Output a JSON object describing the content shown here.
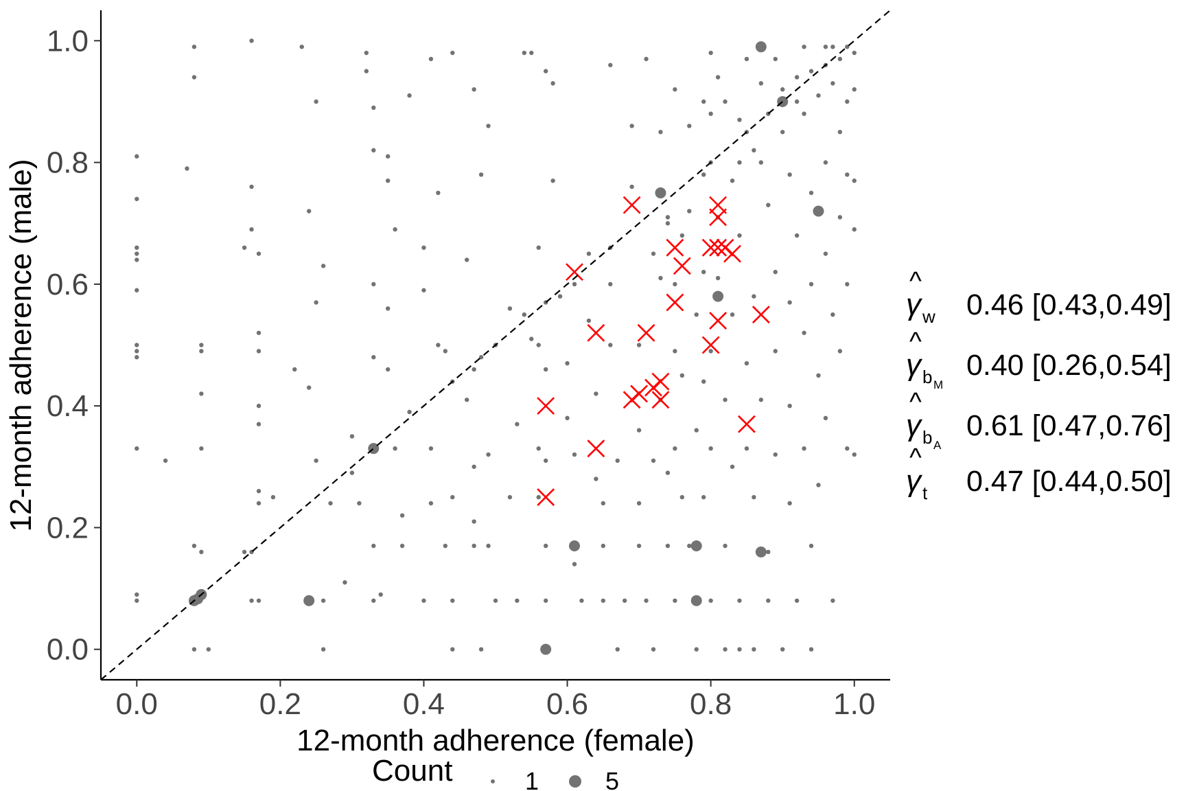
{
  "chart_data": {
    "type": "scatter",
    "xlabel": "12-month adherence (female)",
    "ylabel": "12-month adherence (male)",
    "xlim": [
      -0.05,
      1.05
    ],
    "ylim": [
      -0.05,
      1.05
    ],
    "xticks": [
      "0.0",
      "0.2",
      "0.4",
      "0.6",
      "0.8",
      "1.0"
    ],
    "yticks": [
      "0.0",
      "0.2",
      "0.4",
      "0.6",
      "0.8",
      "1.0"
    ],
    "reference_line": {
      "style": "dashed",
      "slope": 1,
      "intercept": 0
    },
    "legend": {
      "title": "Count",
      "items": [
        {
          "label": "1",
          "count": 1
        },
        {
          "label": "5",
          "count": 5
        }
      ]
    },
    "point_color": "#737373",
    "cross_color": "#ff0000",
    "points_gray": [
      [
        0.0,
        0.81
      ],
      [
        0.0,
        0.74
      ],
      [
        0.0,
        0.66
      ],
      [
        0.0,
        0.65
      ],
      [
        0.0,
        0.64
      ],
      [
        0.0,
        0.59
      ],
      [
        0.0,
        0.5
      ],
      [
        0.0,
        0.49
      ],
      [
        0.0,
        0.48
      ],
      [
        0.0,
        0.33
      ],
      [
        0.0,
        0.09
      ],
      [
        0.0,
        0.08
      ],
      [
        0.04,
        0.31
      ],
      [
        0.07,
        0.79
      ],
      [
        0.08,
        0.99
      ],
      [
        0.08,
        0.94
      ],
      [
        0.08,
        0.17
      ],
      [
        0.09,
        0.5
      ],
      [
        0.09,
        0.49
      ],
      [
        0.09,
        0.42
      ],
      [
        0.09,
        0.33
      ],
      [
        0.08,
        0.0
      ],
      [
        0.1,
        0.0
      ],
      [
        0.09,
        0.16
      ],
      [
        0.15,
        0.66
      ],
      [
        0.16,
        1.0
      ],
      [
        0.16,
        0.76
      ],
      [
        0.16,
        0.69
      ],
      [
        0.17,
        0.65
      ],
      [
        0.17,
        0.52
      ],
      [
        0.17,
        0.49
      ],
      [
        0.17,
        0.4
      ],
      [
        0.17,
        0.37
      ],
      [
        0.16,
        0.16
      ],
      [
        0.17,
        0.26
      ],
      [
        0.17,
        0.24
      ],
      [
        0.15,
        0.16
      ],
      [
        0.16,
        0.08
      ],
      [
        0.17,
        0.08
      ],
      [
        0.19,
        0.25
      ],
      [
        0.23,
        0.99
      ],
      [
        0.22,
        0.46
      ],
      [
        0.24,
        0.43
      ],
      [
        0.25,
        0.9
      ],
      [
        0.25,
        0.57
      ],
      [
        0.24,
        0.72
      ],
      [
        0.26,
        0.63
      ],
      [
        0.25,
        0.31
      ],
      [
        0.24,
        0.08
      ],
      [
        0.26,
        0.08
      ],
      [
        0.26,
        0.0
      ],
      [
        0.27,
        0.24
      ],
      [
        0.29,
        0.11
      ],
      [
        0.3,
        0.35
      ],
      [
        0.3,
        0.29
      ],
      [
        0.31,
        0.24
      ],
      [
        0.32,
        0.98
      ],
      [
        0.32,
        0.95
      ],
      [
        0.33,
        0.89
      ],
      [
        0.33,
        0.82
      ],
      [
        0.33,
        0.6
      ],
      [
        0.33,
        0.48
      ],
      [
        0.33,
        0.17
      ],
      [
        0.33,
        0.08
      ],
      [
        0.34,
        0.09
      ],
      [
        0.35,
        0.81
      ],
      [
        0.35,
        0.77
      ],
      [
        0.36,
        0.69
      ],
      [
        0.35,
        0.56
      ],
      [
        0.35,
        0.46
      ],
      [
        0.36,
        0.33
      ],
      [
        0.37,
        0.17
      ],
      [
        0.37,
        0.22
      ],
      [
        0.38,
        0.39
      ],
      [
        0.38,
        0.91
      ],
      [
        0.4,
        0.66
      ],
      [
        0.4,
        0.59
      ],
      [
        0.4,
        0.08
      ],
      [
        0.41,
        0.97
      ],
      [
        0.41,
        0.33
      ],
      [
        0.41,
        0.24
      ],
      [
        0.42,
        0.75
      ],
      [
        0.42,
        0.5
      ],
      [
        0.43,
        0.49
      ],
      [
        0.43,
        0.17
      ],
      [
        0.44,
        0.98
      ],
      [
        0.44,
        0.25
      ],
      [
        0.44,
        0.08
      ],
      [
        0.44,
        0.0
      ],
      [
        0.46,
        0.64
      ],
      [
        0.46,
        0.41
      ],
      [
        0.47,
        0.92
      ],
      [
        0.47,
        0.3
      ],
      [
        0.47,
        0.21
      ],
      [
        0.47,
        0.17
      ],
      [
        0.48,
        0.78
      ],
      [
        0.48,
        0.48
      ],
      [
        0.48,
        0.0
      ],
      [
        0.49,
        0.86
      ],
      [
        0.49,
        0.32
      ],
      [
        0.49,
        0.17
      ],
      [
        0.5,
        0.08
      ],
      [
        0.52,
        0.56
      ],
      [
        0.52,
        0.25
      ],
      [
        0.53,
        0.37
      ],
      [
        0.53,
        0.08
      ],
      [
        0.54,
        0.98
      ],
      [
        0.55,
        0.51
      ],
      [
        0.55,
        0.98
      ],
      [
        0.56,
        0.66
      ],
      [
        0.56,
        0.5
      ],
      [
        0.56,
        0.33
      ],
      [
        0.56,
        0.25
      ],
      [
        0.57,
        0.95
      ],
      [
        0.57,
        0.57
      ],
      [
        0.57,
        0.46
      ],
      [
        0.57,
        0.31
      ],
      [
        0.57,
        0.17
      ],
      [
        0.57,
        0.08
      ],
      [
        0.58,
        0.93
      ],
      [
        0.58,
        0.77
      ],
      [
        0.6,
        0.47
      ],
      [
        0.6,
        0.38
      ],
      [
        0.61,
        0.32
      ],
      [
        0.61,
        0.14
      ],
      [
        0.62,
        0.08
      ],
      [
        0.63,
        0.65
      ],
      [
        0.63,
        0.54
      ],
      [
        0.64,
        0.42
      ],
      [
        0.64,
        0.28
      ],
      [
        0.65,
        0.24
      ],
      [
        0.65,
        0.17
      ],
      [
        0.65,
        0.08
      ],
      [
        0.66,
        0.6
      ],
      [
        0.66,
        0.5
      ],
      [
        0.66,
        0.96
      ],
      [
        0.67,
        0.31
      ],
      [
        0.67,
        0.0
      ],
      [
        0.68,
        0.08
      ],
      [
        0.69,
        0.86
      ],
      [
        0.69,
        0.76
      ],
      [
        0.7,
        0.5
      ],
      [
        0.7,
        0.36
      ],
      [
        0.7,
        0.24
      ],
      [
        0.7,
        0.17
      ],
      [
        0.71,
        0.08
      ],
      [
        0.71,
        0.97
      ],
      [
        0.72,
        0.65
      ],
      [
        0.72,
        0.31
      ],
      [
        0.72,
        0.0
      ],
      [
        0.73,
        0.85
      ],
      [
        0.73,
        0.61
      ],
      [
        0.73,
        0.41
      ],
      [
        0.74,
        0.71
      ],
      [
        0.74,
        0.29
      ],
      [
        0.74,
        0.17
      ],
      [
        0.75,
        0.92
      ],
      [
        0.75,
        0.6
      ],
      [
        0.75,
        0.49
      ],
      [
        0.75,
        0.33
      ],
      [
        0.75,
        0.08
      ],
      [
        0.76,
        0.68
      ],
      [
        0.76,
        0.45
      ],
      [
        0.76,
        0.25
      ],
      [
        0.77,
        0.86
      ],
      [
        0.77,
        0.17
      ],
      [
        0.78,
        0.55
      ],
      [
        0.78,
        0.36
      ],
      [
        0.78,
        0.0
      ],
      [
        0.79,
        0.9
      ],
      [
        0.79,
        0.62
      ],
      [
        0.79,
        0.44
      ],
      [
        0.79,
        0.25
      ],
      [
        0.8,
        0.98
      ],
      [
        0.8,
        0.88
      ],
      [
        0.8,
        0.8
      ],
      [
        0.8,
        0.49
      ],
      [
        0.8,
        0.33
      ],
      [
        0.8,
        0.08
      ],
      [
        0.81,
        0.94
      ],
      [
        0.81,
        0.71
      ],
      [
        0.81,
        0.61
      ],
      [
        0.82,
        0.41
      ],
      [
        0.82,
        0.17
      ],
      [
        0.82,
        0.0
      ],
      [
        0.83,
        0.77
      ],
      [
        0.83,
        0.55
      ],
      [
        0.83,
        0.3
      ],
      [
        0.84,
        0.87
      ],
      [
        0.84,
        0.68
      ],
      [
        0.84,
        0.08
      ],
      [
        0.84,
        0.0
      ],
      [
        0.85,
        0.97
      ],
      [
        0.85,
        0.47
      ],
      [
        0.85,
        0.33
      ],
      [
        0.86,
        0.58
      ],
      [
        0.86,
        0.25
      ],
      [
        0.86,
        0.0
      ],
      [
        0.87,
        0.93
      ],
      [
        0.87,
        0.8
      ],
      [
        0.87,
        0.41
      ],
      [
        0.88,
        0.73
      ],
      [
        0.88,
        0.16
      ],
      [
        0.88,
        0.08
      ],
      [
        0.89,
        0.97
      ],
      [
        0.89,
        0.62
      ],
      [
        0.89,
        0.49
      ],
      [
        0.89,
        0.32
      ],
      [
        0.9,
        0.85
      ],
      [
        0.9,
        0.0
      ],
      [
        0.91,
        0.78
      ],
      [
        0.91,
        0.57
      ],
      [
        0.91,
        0.4
      ],
      [
        0.91,
        0.24
      ],
      [
        0.92,
        0.94
      ],
      [
        0.92,
        0.68
      ],
      [
        0.92,
        0.08
      ],
      [
        0.93,
        0.99
      ],
      [
        0.93,
        0.88
      ],
      [
        0.93,
        0.52
      ],
      [
        0.93,
        0.33
      ],
      [
        0.94,
        0.75
      ],
      [
        0.94,
        0.6
      ],
      [
        0.94,
        0.17
      ],
      [
        0.94,
        0.0
      ],
      [
        0.95,
        0.91
      ],
      [
        0.95,
        0.45
      ],
      [
        0.95,
        0.27
      ],
      [
        0.96,
        0.99
      ],
      [
        0.96,
        0.8
      ],
      [
        0.96,
        0.65
      ],
      [
        0.96,
        0.38
      ],
      [
        0.97,
        0.93
      ],
      [
        0.97,
        0.55
      ],
      [
        0.97,
        0.08
      ],
      [
        0.98,
        0.97
      ],
      [
        0.98,
        0.85
      ],
      [
        0.98,
        0.71
      ],
      [
        0.98,
        0.49
      ],
      [
        0.99,
        0.99
      ],
      [
        0.99,
        0.9
      ],
      [
        0.99,
        0.78
      ],
      [
        0.99,
        0.6
      ],
      [
        0.99,
        0.33
      ],
      [
        1.0,
        0.98
      ],
      [
        1.0,
        0.92
      ],
      [
        1.0,
        0.69
      ],
      [
        1.0,
        0.32
      ],
      [
        1.0,
        0.77
      ],
      [
        0.82,
        0.9
      ],
      [
        0.85,
        0.85
      ],
      [
        0.88,
        0.88
      ],
      [
        0.9,
        0.92
      ],
      [
        0.92,
        0.9
      ],
      [
        0.94,
        0.95
      ],
      [
        0.96,
        0.96
      ],
      [
        0.97,
        0.99
      ],
      [
        0.86,
        0.82
      ],
      [
        0.84,
        0.8
      ],
      [
        0.79,
        0.78
      ],
      [
        0.77,
        0.72
      ],
      [
        0.74,
        0.7
      ],
      [
        0.66,
        0.66
      ],
      [
        0.61,
        0.6
      ],
      [
        0.59,
        0.58
      ],
      [
        0.54,
        0.55
      ],
      [
        0.5,
        0.5
      ],
      [
        0.47,
        0.46
      ],
      [
        0.44,
        0.44
      ]
    ],
    "points_large": [
      [
        0.08,
        0.08
      ],
      [
        0.09,
        0.09
      ],
      [
        0.085,
        0.083
      ],
      [
        0.24,
        0.08
      ],
      [
        0.33,
        0.33
      ],
      [
        0.57,
        0.0
      ],
      [
        0.61,
        0.17
      ],
      [
        0.73,
        0.75
      ],
      [
        0.78,
        0.17
      ],
      [
        0.78,
        0.08
      ],
      [
        0.81,
        0.58
      ],
      [
        0.87,
        0.99
      ],
      [
        0.87,
        0.16
      ],
      [
        0.9,
        0.9
      ],
      [
        0.95,
        0.72
      ]
    ],
    "points_crosses": [
      [
        0.57,
        0.4
      ],
      [
        0.57,
        0.25
      ],
      [
        0.61,
        0.62
      ],
      [
        0.64,
        0.52
      ],
      [
        0.64,
        0.33
      ],
      [
        0.69,
        0.73
      ],
      [
        0.69,
        0.41
      ],
      [
        0.7,
        0.42
      ],
      [
        0.71,
        0.52
      ],
      [
        0.72,
        0.43
      ],
      [
        0.73,
        0.44
      ],
      [
        0.73,
        0.41
      ],
      [
        0.75,
        0.66
      ],
      [
        0.75,
        0.57
      ],
      [
        0.76,
        0.63
      ],
      [
        0.8,
        0.66
      ],
      [
        0.8,
        0.5
      ],
      [
        0.81,
        0.73
      ],
      [
        0.81,
        0.71
      ],
      [
        0.81,
        0.66
      ],
      [
        0.81,
        0.54
      ],
      [
        0.82,
        0.66
      ],
      [
        0.83,
        0.65
      ],
      [
        0.85,
        0.37
      ],
      [
        0.87,
        0.55
      ]
    ]
  },
  "stats": [
    {
      "symbol": "γ",
      "sub": "w",
      "sub2": "",
      "value": "0.46 [0.43,0.49]"
    },
    {
      "symbol": "γ",
      "sub": "b",
      "sub2": "M",
      "value": "0.40 [0.26,0.54]"
    },
    {
      "symbol": "γ",
      "sub": "b",
      "sub2": "A",
      "value": "0.61 [0.47,0.76]"
    },
    {
      "symbol": "γ",
      "sub": "t",
      "sub2": "",
      "value": "0.47 [0.44,0.50]"
    }
  ],
  "hat": "^"
}
